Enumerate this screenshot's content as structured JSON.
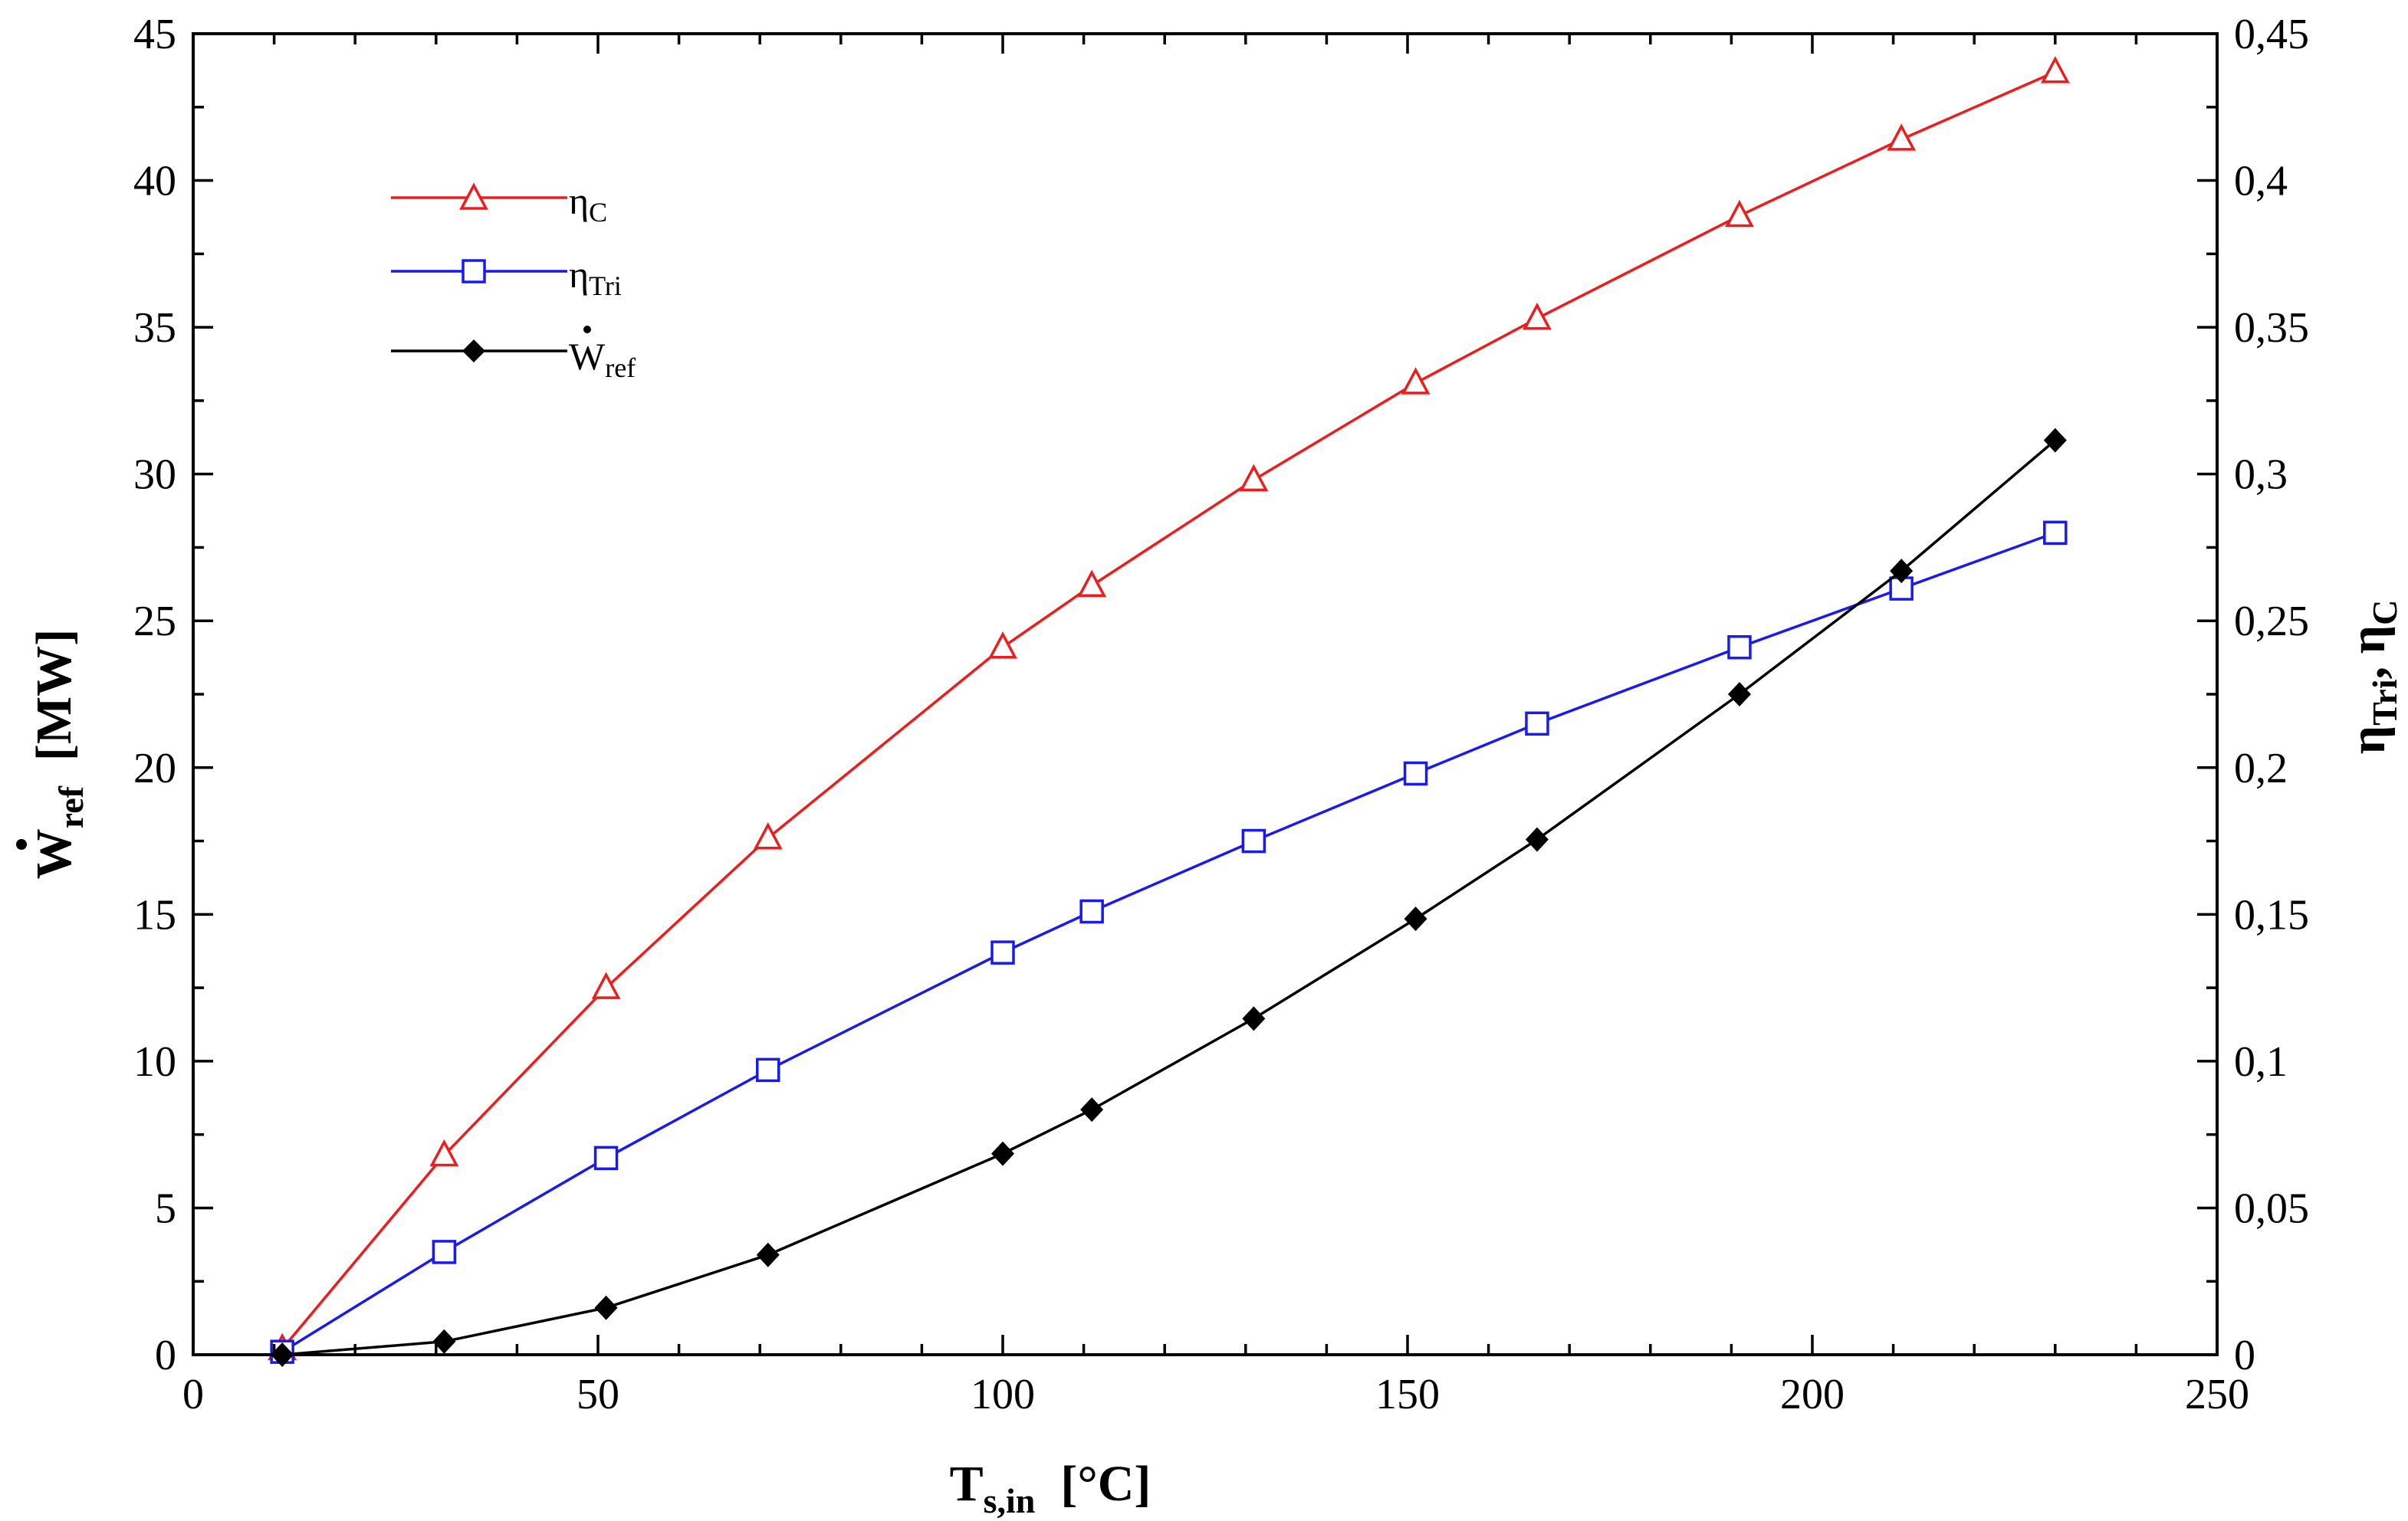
{
  "chart_data": {
    "type": "line",
    "title": "",
    "x": [
      11,
      31,
      51,
      71,
      100,
      111,
      131,
      151,
      166,
      191,
      211,
      230
    ],
    "xlim": [
      0,
      250
    ],
    "xticks": [
      0,
      50,
      100,
      150,
      200,
      250
    ],
    "xlabel": {
      "main": "T",
      "sub": "s,in",
      "unit": "  [°C]"
    },
    "y_left": {
      "label": {
        "main": "W",
        "sub": "ref",
        "unit": "  [MW]"
      },
      "lim": [
        0,
        45
      ],
      "ticks": [
        0,
        5,
        10,
        15,
        20,
        25,
        30,
        35,
        40,
        45
      ],
      "tick_labels": [
        "0",
        "5",
        "10",
        "15",
        "20",
        "25",
        "30",
        "35",
        "40",
        "45"
      ]
    },
    "y_right": {
      "label": {
        "eta": "η",
        "sub1": "Tri",
        "sep": ", ",
        "sub2": "C"
      },
      "lim": [
        0,
        0.45
      ],
      "ticks": [
        0,
        0.05,
        0.1,
        0.15,
        0.2,
        0.25,
        0.3,
        0.35,
        0.4,
        0.45
      ],
      "tick_labels": [
        "0",
        "0,05",
        "0,1",
        "0,15",
        "0,2",
        "0,25",
        "0,3",
        "0,35",
        "0,4",
        "0,45"
      ]
    },
    "series": [
      {
        "key": "eta_c",
        "name": "η",
        "name_sub": "C",
        "axis": "right",
        "color": "#ee1c1c",
        "marker": "triangle-open",
        "values": [
          0.002,
          0.068,
          0.125,
          0.176,
          0.241,
          0.262,
          0.298,
          0.331,
          0.353,
          0.388,
          0.414,
          0.437
        ]
      },
      {
        "key": "eta_tri",
        "name": "η",
        "name_sub": "Tri",
        "axis": "right",
        "color": "#1a1aee",
        "marker": "square-open",
        "values": [
          0.001,
          0.035,
          0.067,
          0.097,
          0.137,
          0.151,
          0.175,
          0.198,
          0.215,
          0.241,
          0.261,
          0.28
        ]
      },
      {
        "key": "w_ref",
        "name": "W",
        "name_sub": "ref",
        "axis": "left",
        "color": "#000000",
        "marker": "diamond-filled",
        "values": [
          0.0,
          0.45,
          1.6,
          3.4,
          6.85,
          8.35,
          11.45,
          14.85,
          17.55,
          22.5,
          26.7,
          31.15
        ]
      }
    ],
    "legend": {
      "position": "top-left"
    }
  }
}
